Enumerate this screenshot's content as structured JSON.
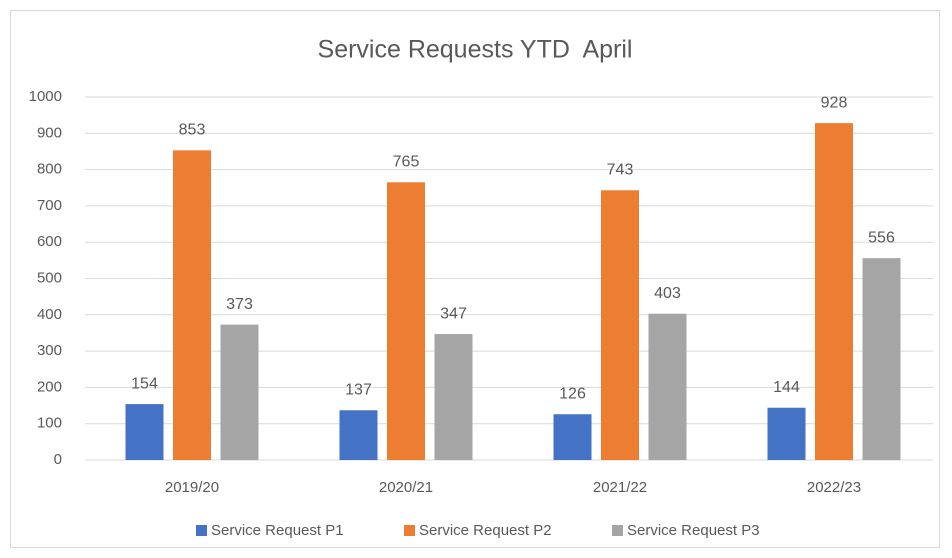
{
  "chart_data": {
    "type": "bar",
    "title": "Service Requests YTD  April",
    "categories": [
      "2019/20",
      "2020/21",
      "2021/22",
      "2022/23"
    ],
    "series": [
      {
        "name": "Service Request P1",
        "color": "#4472c4",
        "values": [
          154,
          137,
          126,
          144
        ]
      },
      {
        "name": "Service Request P2",
        "color": "#ed7d31",
        "values": [
          853,
          765,
          743,
          928
        ]
      },
      {
        "name": "Service Request P3",
        "color": "#a5a5a5",
        "values": [
          373,
          347,
          403,
          556
        ]
      }
    ],
    "ylim": [
      0,
      1000
    ],
    "yticks": [
      0,
      100,
      200,
      300,
      400,
      500,
      600,
      700,
      800,
      900,
      1000
    ],
    "grid": true,
    "legend": "bottom"
  }
}
